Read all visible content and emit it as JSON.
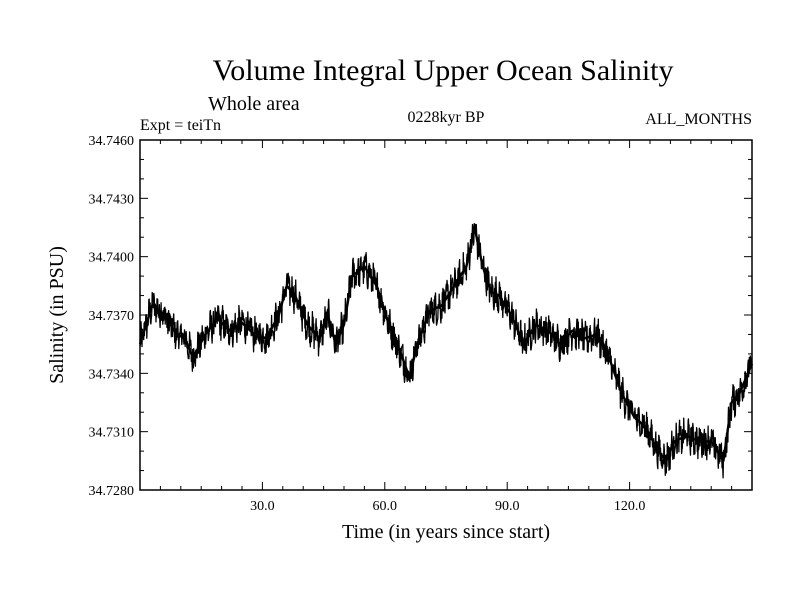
{
  "chart_data": {
    "type": "line",
    "title": "Volume Integral Upper Ocean Salinity",
    "subtitle": "Whole area",
    "experiment_label": "Expt = teiTn",
    "period_label": "0228kyr BP",
    "months_label": "ALL_MONTHS",
    "xlabel": "Time (in years since start)",
    "ylabel": "Salinity (in PSU)",
    "xlim": [
      0,
      150
    ],
    "ylim": [
      34.728,
      34.746
    ],
    "x_ticks": [
      30,
      60,
      90,
      120
    ],
    "x_tick_labels": [
      "30.0",
      "60.0",
      "90.0",
      "120.0"
    ],
    "y_ticks": [
      34.728,
      34.731,
      34.734,
      34.737,
      34.74,
      34.743,
      34.746
    ],
    "y_tick_labels": [
      "34.7280",
      "34.7310",
      "34.7340",
      "34.7370",
      "34.7400",
      "34.7430",
      "34.7460"
    ],
    "grid": false,
    "line_color": "#000000",
    "series": [
      {
        "name": "salinity",
        "x": [
          0,
          3,
          6,
          9,
          11,
          13,
          16,
          19,
          22,
          25,
          28,
          31,
          34,
          36,
          38,
          41,
          44,
          46,
          48,
          50,
          52,
          55,
          58,
          61,
          64,
          66,
          68,
          71,
          74,
          77,
          80,
          82,
          84,
          86,
          88,
          91,
          94,
          97,
          100,
          103,
          106,
          109,
          112,
          115,
          118,
          121,
          124,
          127,
          129,
          131,
          134,
          137,
          140,
          143,
          145,
          147,
          150
        ],
        "values": [
          34.7355,
          34.7375,
          34.737,
          34.736,
          34.7358,
          34.7348,
          34.736,
          34.7368,
          34.7362,
          34.7366,
          34.736,
          34.7358,
          34.737,
          34.7385,
          34.738,
          34.7365,
          34.7358,
          34.737,
          34.7355,
          34.7365,
          34.739,
          34.7395,
          34.7385,
          34.7365,
          34.735,
          34.7338,
          34.7355,
          34.7372,
          34.7375,
          34.7385,
          34.7395,
          34.7415,
          34.7395,
          34.7382,
          34.738,
          34.737,
          34.7355,
          34.7365,
          34.7362,
          34.7355,
          34.7362,
          34.7358,
          34.736,
          34.7348,
          34.733,
          34.7318,
          34.7312,
          34.73,
          34.7295,
          34.7305,
          34.7308,
          34.7305,
          34.7305,
          34.7295,
          34.7325,
          34.733,
          34.7345
        ]
      }
    ]
  }
}
